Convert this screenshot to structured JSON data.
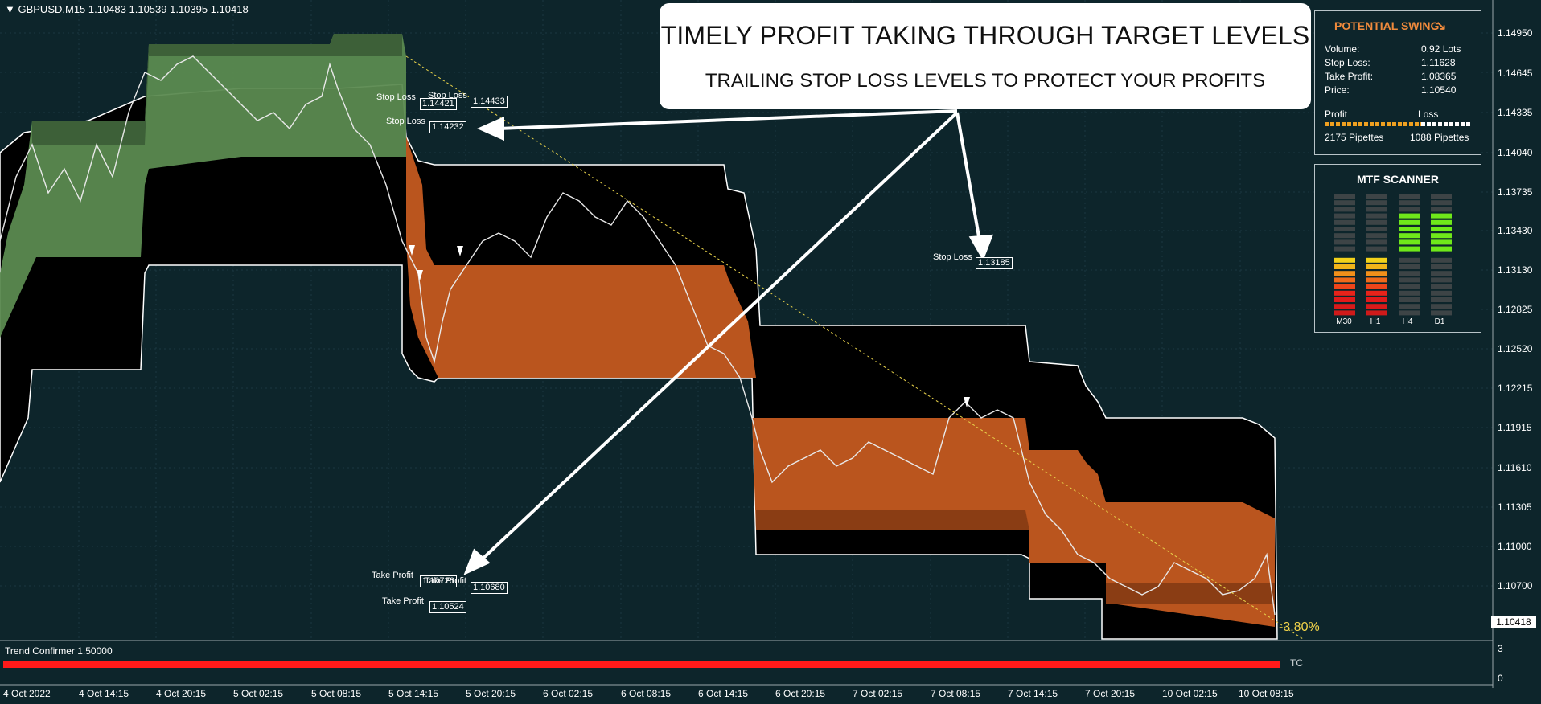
{
  "chart_header": {
    "symbol_text": "▼ GBPUSD,M15  1.10483 1.10539 1.10395 1.10418"
  },
  "callout": {
    "line1": "TIMELY PROFIT TAKING THROUGH TARGET LEVELS",
    "line2": "TRAILING STOP LOSS LEVELS TO PROTECT YOUR PROFITS"
  },
  "swing_panel": {
    "title": "POTENTIAL SWING",
    "arrow_icon": "arrow-down-right-icon",
    "volume_label": "Volume:",
    "volume_value": "0.92 Lots",
    "sl_label": "Stop Loss:",
    "sl_value": "1.11628",
    "tp_label": "Take Profit:",
    "tp_value": "1.08365",
    "price_label": "Price:",
    "price_value": "1.10540",
    "profit_label": "Profit",
    "loss_label": "Loss",
    "profit_pips": "2175 Pipettes",
    "loss_pips": "1088 Pipettes",
    "profit_color": "#f0a020",
    "loss_color": "#ffffff"
  },
  "scanner": {
    "title": "MTF SCANNER",
    "timeframes": [
      "M30",
      "H1",
      "H4",
      "D1"
    ]
  },
  "price_axis": [
    "1.14950",
    "1.14645",
    "1.14335",
    "1.14040",
    "1.13735",
    "1.13430",
    "1.13130",
    "1.12825",
    "1.12520",
    "1.12215",
    "1.11915",
    "1.11610",
    "1.11305",
    "1.11000",
    "1.10700",
    "1.10418"
  ],
  "current_price": "1.10418",
  "pct_change": "-3.80%",
  "time_axis": [
    "4 Oct 2022",
    "4 Oct 14:15",
    "4 Oct 20:15",
    "5 Oct 02:15",
    "5 Oct 08:15",
    "5 Oct 14:15",
    "5 Oct 20:15",
    "6 Oct 02:15",
    "6 Oct 08:15",
    "6 Oct 14:15",
    "6 Oct 20:15",
    "7 Oct 02:15",
    "7 Oct 08:15",
    "7 Oct 14:15",
    "7 Oct 20:15",
    "10 Oct 02:15",
    "10 Oct 08:15"
  ],
  "indicator": {
    "name": "Trend Confirmer 1.50000",
    "tag": "TC",
    "scale_top": "3",
    "scale_bottom": "0",
    "bar_color": "#ff1a1a"
  },
  "levels": {
    "stop_loss_label": "Stop Loss",
    "sl_a": "1.14421",
    "sl_b": "1.14433",
    "sl_c": "1.14232",
    "sl_d": "1.13185",
    "take_profit_label": "Take Profit",
    "tp_overlap_text": "1.10726",
    "tp_b": "1.10680",
    "tp_c": "1.10524"
  },
  "colors": {
    "background": "#0d252b",
    "bull_zone": "#5b8a50",
    "bear_zone": "#c0581f",
    "channel": "#000000",
    "grid": "#1e3a40"
  }
}
